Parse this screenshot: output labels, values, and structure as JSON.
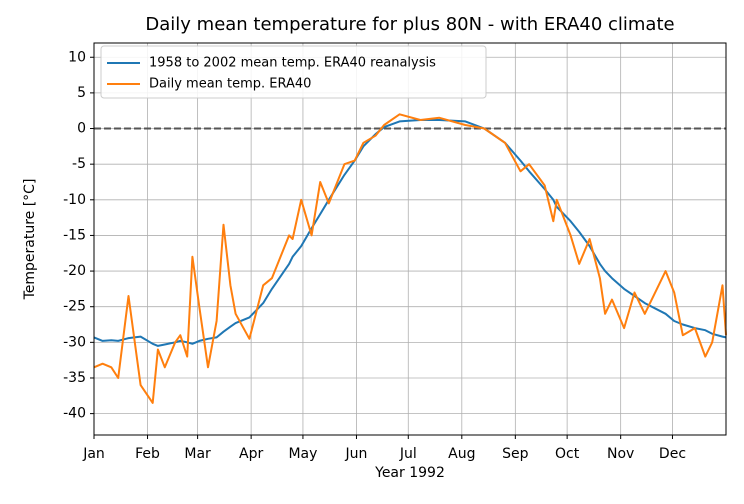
{
  "chart_data": {
    "type": "line",
    "title": "Daily mean temperature for plus 80N - with ERA40 climate",
    "xlabel": "Year 1992",
    "ylabel": "Temperature [°C]",
    "x": [
      0,
      5,
      10,
      14,
      20,
      27,
      34,
      37,
      41,
      47,
      50,
      54,
      57,
      61,
      66,
      71,
      75,
      79,
      82,
      90,
      98,
      103,
      113,
      115,
      120,
      126,
      131,
      136,
      145,
      151,
      156,
      163,
      168,
      177,
      189,
      200,
      215,
      226,
      238,
      247,
      252,
      261,
      266,
      268,
      276,
      281,
      287,
      293,
      296,
      300,
      307,
      313,
      319,
      331,
      336,
      341,
      348,
      354,
      358,
      364,
      366
    ],
    "series": [
      {
        "name": "1958 to 2002 mean temp. ERA40 reanalysis",
        "color": "#1f77b4",
        "values": [
          -29.3,
          -29.8,
          -29.7,
          -29.8,
          -29.4,
          -29.2,
          -30.2,
          -30.5,
          -30.3,
          -30,
          -29.8,
          -30,
          -30.2,
          -29.8,
          -29.5,
          -29.3,
          -28.5,
          -27.8,
          -27.3,
          -26.5,
          -24.5,
          -22.5,
          -19,
          -18,
          -16.5,
          -14,
          -12,
          -10,
          -6.5,
          -4.5,
          -2.5,
          -0.8,
          0.2,
          1,
          1.2,
          1.2,
          1,
          0,
          -2,
          -4.5,
          -6,
          -8.5,
          -10,
          -11,
          -13,
          -14.5,
          -16.5,
          -19,
          -20,
          -21,
          -22.5,
          -23.5,
          -24.5,
          -26,
          -27,
          -27.5,
          -28,
          -28.3,
          -28.8,
          -29.2,
          -29.3
        ]
      },
      {
        "name": "Daily mean temp. ERA40",
        "color": "#ff7f0e",
        "values": [
          -33.5,
          -33,
          -33.5,
          -35,
          -23.5,
          -36,
          -38.5,
          -31,
          -33.5,
          -30,
          -29,
          -32,
          -18,
          -25,
          -33.5,
          -27,
          -13.5,
          -22,
          -26,
          -29.5,
          -22,
          -21,
          -15,
          -15.5,
          -10,
          -15,
          -7.5,
          -10.5,
          -5,
          -4.5,
          -2,
          -1,
          0.5,
          2,
          1.2,
          1.5,
          0.5,
          0,
          -2,
          -6,
          -5,
          -8,
          -13,
          -10,
          -15,
          -19,
          -15.5,
          -21,
          -26,
          -24,
          -28,
          -23,
          -26,
          -20,
          -23,
          -29,
          -28,
          -32,
          -30,
          -22,
          -29
        ]
      }
    ],
    "hline": 0,
    "xlim": [
      0,
      366
    ],
    "xticks": [
      {
        "value": 0,
        "label": "Jan"
      },
      {
        "value": 31,
        "label": "Feb"
      },
      {
        "value": 60,
        "label": "Mar"
      },
      {
        "value": 91,
        "label": "Apr"
      },
      {
        "value": 121,
        "label": "May"
      },
      {
        "value": 152,
        "label": "Jun"
      },
      {
        "value": 182,
        "label": "Jul"
      },
      {
        "value": 213,
        "label": "Aug"
      },
      {
        "value": 244,
        "label": "Sep"
      },
      {
        "value": 274,
        "label": "Oct"
      },
      {
        "value": 305,
        "label": "Nov"
      },
      {
        "value": 335,
        "label": "Dec"
      }
    ],
    "ylim": [
      -43,
      12
    ],
    "yticks": [
      10,
      5,
      0,
      -5,
      -10,
      -15,
      -20,
      -25,
      -30,
      -35,
      -40
    ],
    "grid": true,
    "legend": "upper left"
  }
}
